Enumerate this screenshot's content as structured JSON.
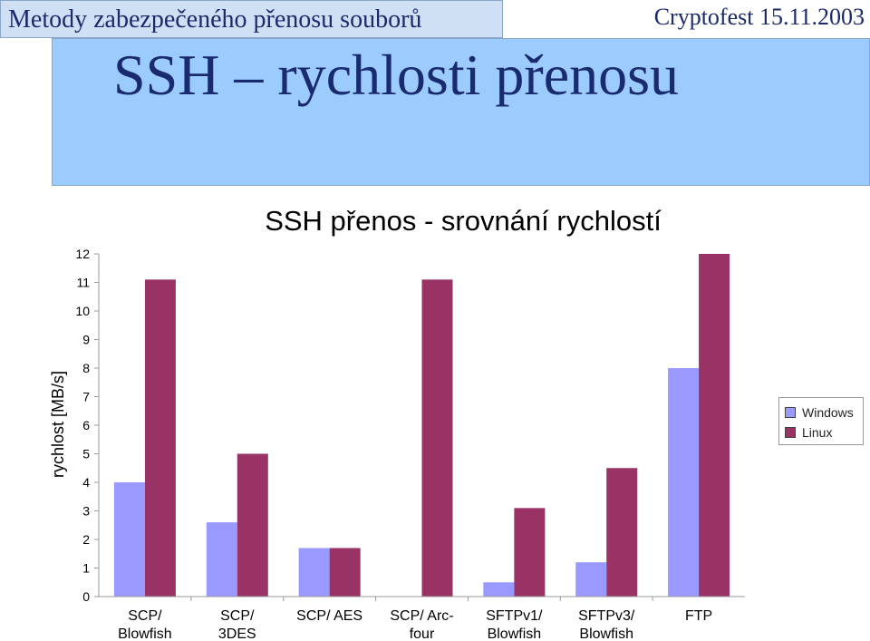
{
  "header": {
    "title": "Metody zabezpečeného přenosu souborů",
    "event": "Cryptofest 15.11.2003"
  },
  "slide": {
    "title": "SSH – rychlosti přenosu"
  },
  "colors": {
    "windows": "#9999ff",
    "linux": "#993366"
  },
  "chart_data": {
    "type": "bar",
    "title": "SSH přenos - srovnání rychlostí",
    "ylabel": "rychlost [MB/s]",
    "xlabel": "",
    "ylim": [
      0,
      12
    ],
    "yticks": [
      0,
      1,
      2,
      3,
      4,
      5,
      6,
      7,
      8,
      9,
      10,
      11,
      12
    ],
    "grid": false,
    "legend_position": "right",
    "categories": [
      [
        "SCP/",
        "Blowfish"
      ],
      [
        "SCP/",
        "3DES"
      ],
      [
        "SCP/ AES"
      ],
      [
        "SCP/ Arc-",
        "four"
      ],
      [
        "SFTPv1/",
        "Blowfish"
      ],
      [
        "SFTPv3/",
        "Blowfish"
      ],
      [
        "FTP"
      ]
    ],
    "series": [
      {
        "name": "Windows",
        "values": [
          4.0,
          2.6,
          1.7,
          0,
          0.5,
          1.2,
          8.0
        ]
      },
      {
        "name": "Linux",
        "values": [
          11.1,
          5.0,
          1.7,
          11.1,
          3.1,
          4.5,
          12.0
        ]
      }
    ]
  }
}
